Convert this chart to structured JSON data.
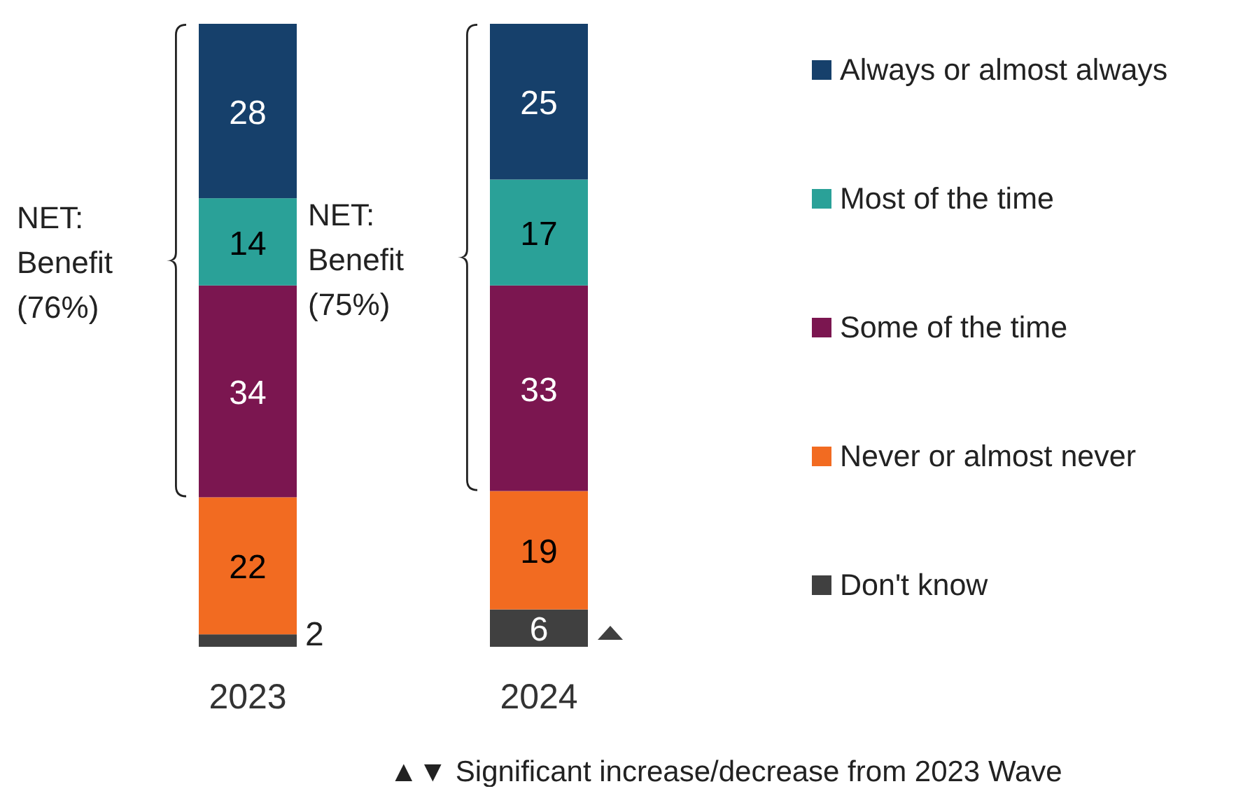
{
  "chart_data": {
    "type": "bar",
    "stacked": true,
    "categories": [
      "2023",
      "2024"
    ],
    "series": [
      {
        "name": "Don't know",
        "color": "#404040",
        "values": [
          2,
          6
        ]
      },
      {
        "name": "Never or almost never",
        "color": "#f26b21",
        "values": [
          22,
          19
        ]
      },
      {
        "name": "Some of the time",
        "color": "#7b1650",
        "values": [
          34,
          33
        ]
      },
      {
        "name": "Most of the time",
        "color": "#2aa198",
        "values": [
          14,
          17
        ]
      },
      {
        "name": "Always or almost always",
        "color": "#16406b",
        "values": [
          28,
          25
        ]
      }
    ],
    "data_labels": true,
    "legend": "right",
    "grid": false,
    "tick_labels": "x",
    "annotations": [
      "NET: Benefit (76%)",
      "NET: Benefit (75%)",
      "▲▼ Significant increase/decrease from 2023 Wave"
    ]
  }
}
